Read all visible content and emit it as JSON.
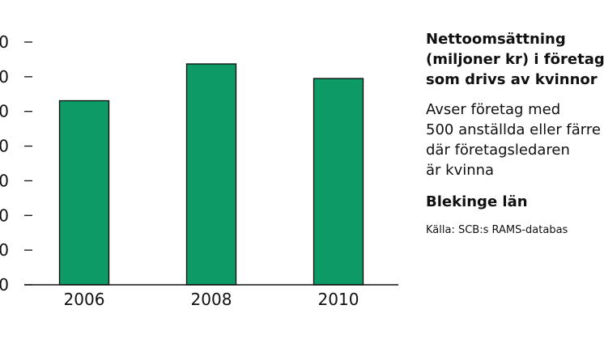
{
  "chart_data": {
    "type": "bar",
    "categories": [
      "2006",
      "2008",
      "2010"
    ],
    "values": [
      455,
      546,
      510
    ],
    "y_tick_labels": [
      "0",
      "00",
      "00",
      "00",
      "00",
      "00",
      "00",
      "00"
    ],
    "ylim": [
      0,
      600
    ],
    "grid": false,
    "xlabel": "",
    "ylabel": ""
  },
  "side_panel": {
    "title_lines": [
      "Nettoomsättning",
      "(miljoner kr) i företag",
      "som drivs av kvinnor"
    ],
    "description_lines": [
      "Avser företag med",
      "500 anställda eller färre",
      "där företagsledaren",
      "är kvinna"
    ],
    "region": "Blekinge län",
    "source": "Källa: SCB:s RAMS-databas"
  },
  "colors": {
    "bar": "#0e9a66",
    "bar_stroke": "#0b0b0b",
    "axis": "#111111",
    "text": "#111111"
  }
}
